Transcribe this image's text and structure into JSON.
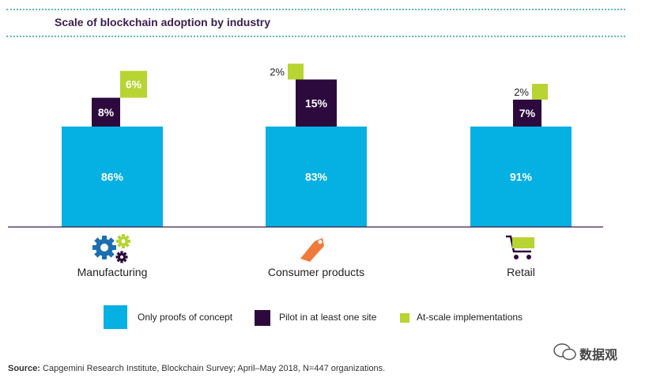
{
  "title": "Scale of blockchain adoption by industry",
  "chart_data": {
    "type": "bar",
    "stacked": true,
    "categories": [
      "Manufacturing",
      "Consumer products",
      "Retail"
    ],
    "series": [
      {
        "name": "Only proofs of concept",
        "color": "#05b0e3",
        "values": [
          86,
          83,
          91
        ],
        "labels": [
          "86%",
          "83%",
          "91%"
        ]
      },
      {
        "name": "Pilot in at least one site",
        "color": "#2d0a3d",
        "values": [
          8,
          15,
          7
        ],
        "labels": [
          "8%",
          "15%",
          "7%"
        ]
      },
      {
        "name": "At-scale implementations",
        "color": "#b7d433",
        "values": [
          6,
          2,
          2
        ],
        "labels": [
          "6%",
          "2%",
          "2%"
        ]
      }
    ],
    "title": "Scale of blockchain adoption by industry"
  },
  "legend": [
    {
      "label": "Only proofs of concept",
      "color": "#05b0e3"
    },
    {
      "label": "Pilot in at least one site",
      "color": "#2d0a3d"
    },
    {
      "label": "At-scale implementations",
      "color": "#b7d433"
    }
  ],
  "icons": [
    "gears-icon",
    "price-tag-icon",
    "shopping-cart-icon"
  ],
  "source": {
    "label": "Source:",
    "text": " Capgemini Research Institute, Blockchain Survey; April–May 2018, N=447 organizations."
  },
  "watermark": "数据观"
}
